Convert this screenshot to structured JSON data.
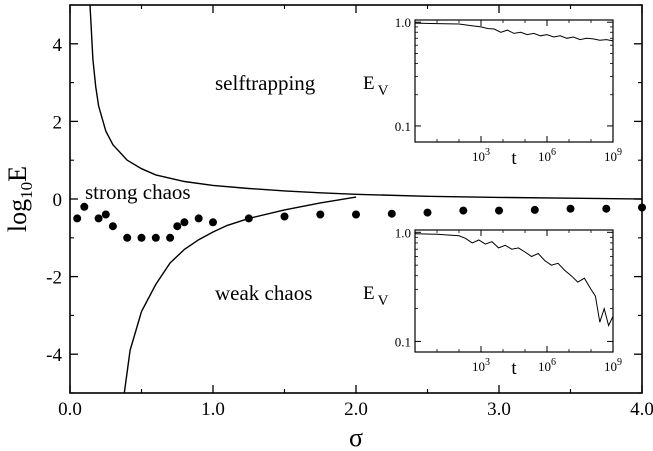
{
  "chart_data": {
    "type": "scatter",
    "xlabel": "σ",
    "ylabel": "log",
    "ylabel_sub": "10",
    "ylabel_tail": "E",
    "xlim": [
      0.0,
      4.0
    ],
    "ylim": [
      -5.0,
      5.0
    ],
    "xticks": [
      0.0,
      1.0,
      2.0,
      3.0,
      4.0
    ],
    "xtick_labels": [
      "0.0",
      "1.0",
      "2.0",
      "3.0",
      "4.0"
    ],
    "yticks": [
      -4,
      -2,
      0,
      2,
      4
    ],
    "ytick_labels": [
      "-4",
      "-2",
      "0",
      "2",
      "4"
    ],
    "grid": false,
    "annotations": {
      "selftrapping": "selftrapping",
      "strong_chaos": "strong chaos",
      "weak_chaos": "weak chaos"
    },
    "series": [
      {
        "kind": "points",
        "x": [
          0.05,
          0.1,
          0.2,
          0.25,
          0.3,
          0.4,
          0.5,
          0.6,
          0.7,
          0.75,
          0.8,
          0.9,
          1.0,
          1.25,
          1.5,
          1.75,
          2.0,
          2.25,
          2.5,
          2.75,
          3.0,
          3.25,
          3.5,
          3.75,
          4.0
        ],
        "y": [
          -0.5,
          -0.2,
          -0.5,
          -0.4,
          -0.7,
          -1.0,
          -1.0,
          -1.0,
          -1.0,
          -0.7,
          -0.6,
          -0.5,
          -0.6,
          -0.5,
          -0.45,
          -0.4,
          -0.4,
          -0.38,
          -0.35,
          -0.3,
          -0.3,
          -0.28,
          -0.25,
          -0.25,
          -0.22
        ]
      },
      {
        "kind": "line",
        "x": [
          0.14,
          0.16,
          0.18,
          0.2,
          0.25,
          0.3,
          0.4,
          0.5,
          0.6,
          0.8,
          1.0,
          1.25,
          1.5,
          1.75,
          2.0,
          2.5,
          3.0,
          3.5,
          4.0
        ],
        "y": [
          5.0,
          3.6,
          2.9,
          2.4,
          1.75,
          1.4,
          1.0,
          0.78,
          0.62,
          0.45,
          0.35,
          0.27,
          0.21,
          0.16,
          0.12,
          0.07,
          0.04,
          0.02,
          0.0
        ]
      },
      {
        "kind": "line",
        "x": [
          0.38,
          0.42,
          0.5,
          0.6,
          0.7,
          0.8,
          0.9,
          1.0,
          1.1,
          1.25,
          1.5,
          1.75,
          2.0
        ],
        "y": [
          -5.0,
          -3.9,
          -2.9,
          -2.2,
          -1.65,
          -1.3,
          -1.05,
          -0.85,
          -0.68,
          -0.5,
          -0.28,
          -0.1,
          0.05
        ]
      }
    ],
    "insets": [
      {
        "ylabel": "E",
        "ylabel_sub": "V",
        "xlabel": "t",
        "yticks": [
          0.1,
          1.0
        ],
        "ytick_labels": [
          "0.1",
          "1.0"
        ],
        "xtick_labels": [
          "10",
          "10",
          "10"
        ],
        "xtick_exponents": [
          "3",
          "6",
          "9"
        ],
        "xlim": [
          0,
          9
        ],
        "ylim": [
          0.07,
          1.05
        ],
        "log_x": true,
        "log_y": true,
        "line": {
          "x": [
            0,
            1,
            2,
            2.5,
            3,
            3.3,
            3.6,
            3.9,
            4.2,
            4.5,
            4.8,
            5.1,
            5.4,
            5.7,
            6.0,
            6.3,
            6.6,
            6.9,
            7.2,
            7.5,
            7.8,
            8.1,
            8.4,
            8.7,
            9.0
          ],
          "y": [
            0.98,
            0.97,
            0.96,
            0.93,
            0.9,
            0.87,
            0.86,
            0.8,
            0.84,
            0.78,
            0.8,
            0.76,
            0.78,
            0.74,
            0.76,
            0.72,
            0.74,
            0.7,
            0.72,
            0.68,
            0.7,
            0.69,
            0.67,
            0.68,
            0.66
          ]
        }
      },
      {
        "ylabel": "E",
        "ylabel_sub": "V",
        "xlabel": "t",
        "yticks": [
          0.1,
          1.0
        ],
        "ytick_labels": [
          "0.1",
          "1.0"
        ],
        "xtick_labels": [
          "10",
          "10",
          "10"
        ],
        "xtick_exponents": [
          "3",
          "6",
          "9"
        ],
        "xlim": [
          0,
          9
        ],
        "ylim": [
          0.08,
          1.05
        ],
        "log_x": true,
        "log_y": true,
        "line": {
          "x": [
            0,
            1,
            2,
            2.3,
            2.6,
            2.9,
            3.2,
            3.5,
            3.8,
            4.1,
            4.4,
            4.7,
            5.0,
            5.3,
            5.6,
            5.9,
            6.2,
            6.5,
            6.8,
            7.1,
            7.4,
            7.7,
            8.0,
            8.2,
            8.4,
            8.6,
            8.8,
            9.0
          ],
          "y": [
            0.97,
            0.96,
            0.93,
            0.88,
            0.8,
            0.85,
            0.78,
            0.82,
            0.72,
            0.76,
            0.7,
            0.72,
            0.66,
            0.6,
            0.64,
            0.55,
            0.5,
            0.52,
            0.45,
            0.4,
            0.35,
            0.38,
            0.3,
            0.26,
            0.15,
            0.2,
            0.14,
            0.17
          ]
        }
      }
    ]
  }
}
